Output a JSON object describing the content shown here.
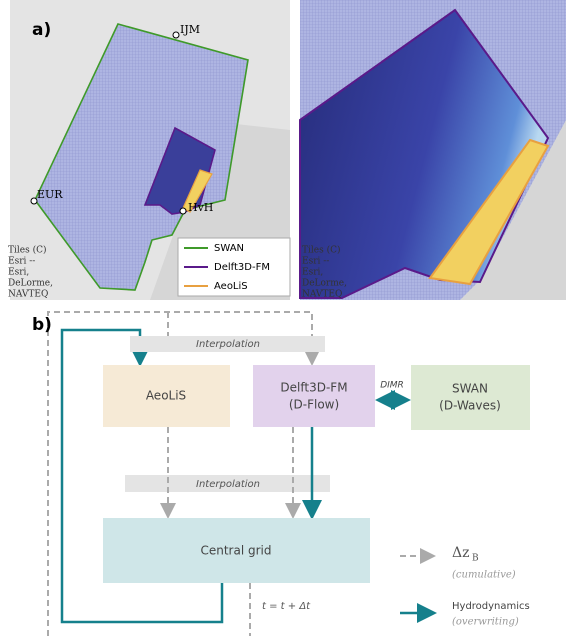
{
  "panel_a": {
    "label": "a)",
    "places": [
      "IJM",
      "EUR",
      "HvH"
    ],
    "legend": [
      "SWAN",
      "Delft3D-FM",
      "AeoLiS"
    ],
    "attribution_left": [
      "Tiles (C)",
      "Esri --",
      "Esri,",
      "DeLorme,",
      "NAVTEQ"
    ],
    "attribution_right": [
      "Tiles (C)",
      "Esri --",
      "Esri,",
      "DeLorme,",
      "NAVTEQ"
    ]
  },
  "panel_b": {
    "label": "b)",
    "interpolation_top": "Interpolation",
    "aeolis": "AeoLiS",
    "delft": [
      "Delft3D-FM",
      "(D-Flow)"
    ],
    "dimr": "DIMR",
    "swan": [
      "SWAN",
      "(D-Waves)"
    ],
    "interpolation_bottom": "Interpolation",
    "central_grid": "Central grid",
    "time_step": "t = t + Δt",
    "legend": [
      {
        "symbol": "Δz",
        "subscript": "B",
        "note": "(cumulative)"
      },
      {
        "label": "Hydrodynamics",
        "note": "(overwriting)"
      }
    ]
  }
}
